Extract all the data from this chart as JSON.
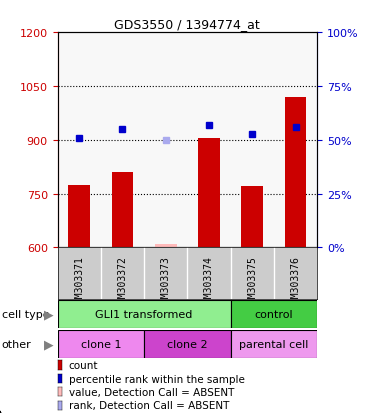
{
  "title": "GDS3550 / 1394774_at",
  "samples": [
    "GSM303371",
    "GSM303372",
    "GSM303373",
    "GSM303374",
    "GSM303375",
    "GSM303376"
  ],
  "bar_values": [
    775,
    810,
    610,
    905,
    770,
    1020
  ],
  "bar_absent": [
    false,
    false,
    true,
    false,
    false,
    false
  ],
  "percentile_values": [
    905,
    930,
    900,
    940,
    915,
    935
  ],
  "percentile_absent": [
    false,
    false,
    true,
    false,
    false,
    false
  ],
  "ylim_left": [
    600,
    1200
  ],
  "ylim_right": [
    0,
    100
  ],
  "yticks_left": [
    600,
    750,
    900,
    1050,
    1200
  ],
  "yticks_right": [
    0,
    25,
    50,
    75,
    100
  ],
  "cell_type_groups": [
    {
      "label": "GLI1 transformed",
      "start": 0,
      "end": 4,
      "color": "#90EE90"
    },
    {
      "label": "control",
      "start": 4,
      "end": 6,
      "color": "#44CC44"
    }
  ],
  "other_groups": [
    {
      "label": "clone 1",
      "start": 0,
      "end": 2,
      "color": "#EE88EE"
    },
    {
      "label": "clone 2",
      "start": 2,
      "end": 4,
      "color": "#CC44CC"
    },
    {
      "label": "parental cell",
      "start": 4,
      "end": 6,
      "color": "#EE99EE"
    }
  ],
  "bar_color": "#CC0000",
  "bar_absent_color": "#FFBBBB",
  "percentile_color": "#0000CC",
  "percentile_absent_color": "#AAAAEE",
  "legend_items": [
    {
      "label": "count",
      "color": "#CC0000"
    },
    {
      "label": "percentile rank within the sample",
      "color": "#0000CC"
    },
    {
      "label": "value, Detection Call = ABSENT",
      "color": "#FFBBBB"
    },
    {
      "label": "rank, Detection Call = ABSENT",
      "color": "#AAAAEE"
    }
  ],
  "left_tick_color": "#CC0000",
  "right_tick_color": "#0000CC",
  "sample_bg_color": "#CCCCCC"
}
